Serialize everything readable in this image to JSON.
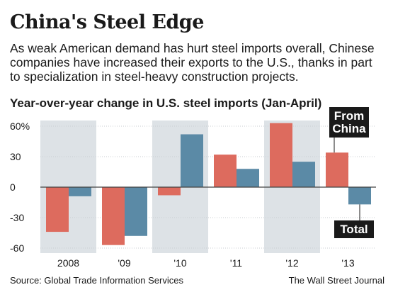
{
  "headline": "China's Steel Edge",
  "dek": "As weak American demand has hurt steel imports overall, Chinese companies have increased their exports to the U.S., thanks in part to specialization in steel-heavy construction projects.",
  "colors": {
    "china": "#dd6b5e",
    "total": "#5b8aa6",
    "band": "#dde2e6",
    "zero_line": "#444444",
    "grid": "#ffffff",
    "callout_bg": "#1a1a1a",
    "callout_text": "#ffffff"
  },
  "chart_data": {
    "type": "bar",
    "title": "Year-over-year change in U.S. steel imports (Jan-April)",
    "categories": [
      "2008",
      "'09",
      "'10",
      "'11",
      "'12",
      "'13"
    ],
    "series": [
      {
        "name": "From China",
        "values": [
          -44,
          -57,
          -8,
          32,
          63,
          34
        ]
      },
      {
        "name": "Total",
        "values": [
          -9,
          -48,
          52,
          18,
          25,
          -17
        ]
      }
    ],
    "yticks": [
      "60%",
      "30",
      "0",
      "-30",
      "-60"
    ],
    "ytick_values": [
      60,
      30,
      0,
      -30,
      -60
    ],
    "ylim": [
      -63,
      63
    ],
    "shaded_categories": [
      "2008",
      "'10",
      "'12"
    ],
    "grid": true,
    "annotations": [
      "From China",
      "Total"
    ]
  },
  "footer": {
    "source": "Source: Global Trade Information Services",
    "credit": "The Wall Street Journal"
  }
}
